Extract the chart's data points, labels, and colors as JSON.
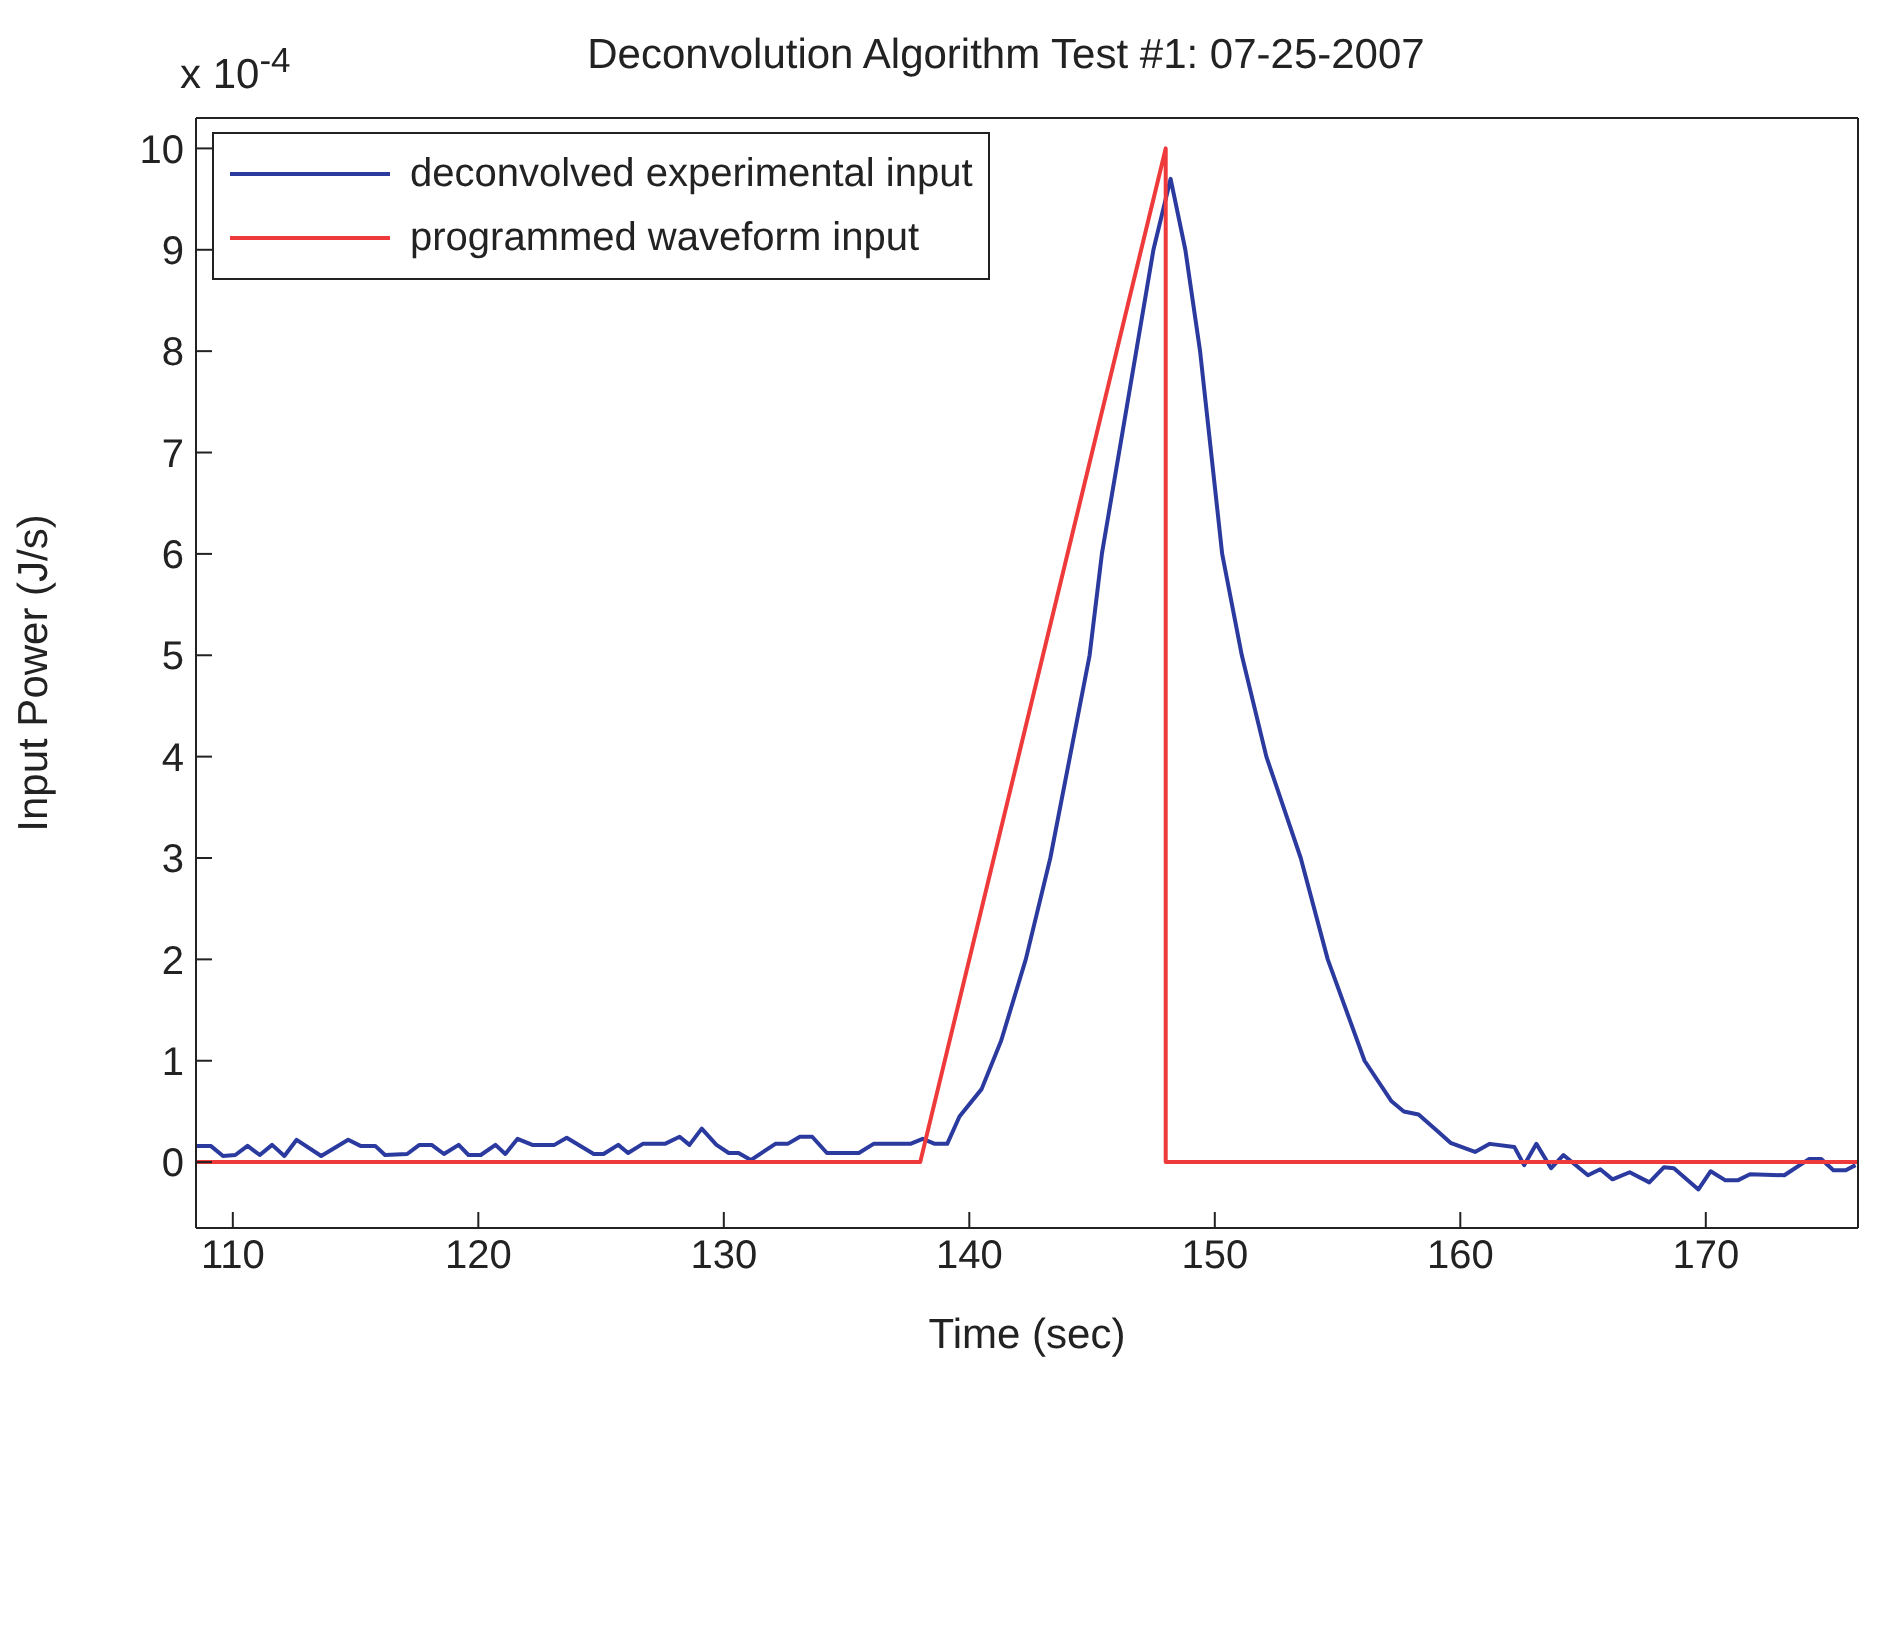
{
  "chart_data": {
    "type": "line",
    "title": "Deconvolution Algorithm Test #1: 07-25-2007",
    "xlabel": "Time (sec)",
    "ylabel": "Input Power (J/s)",
    "annotations": [
      "x 10$^{-4}$"
    ],
    "xlim": [
      108.5,
      176.2
    ],
    "xticks": [
      110,
      120,
      130,
      140,
      150,
      160,
      170
    ],
    "ylim": [
      -0.65,
      10.3
    ],
    "yticks": [
      0,
      1,
      2,
      3,
      4,
      5,
      6,
      7,
      8,
      9,
      10
    ],
    "legend": "top left",
    "marker": "none",
    "line_style": "solid",
    "series": [
      {
        "name": "deconvolved experimental input",
        "color": "#2b3a9e",
        "x": [
          108.5,
          109.1,
          109.6,
          110.1,
          110.6,
          111.1,
          111.6,
          112.1,
          112.6,
          113.6,
          114.7,
          115.2,
          115.8,
          116.2,
          117.1,
          117.6,
          118.1,
          118.6,
          119.2,
          119.6,
          120.1,
          120.7,
          121.1,
          121.6,
          122.2,
          123.1,
          123.6,
          124.7,
          125.1,
          125.7,
          126.1,
          126.7,
          127.6,
          128.2,
          128.6,
          129.1,
          129.7,
          130.2,
          130.6,
          131.1,
          132.1,
          132.6,
          133.1,
          133.6,
          134.2,
          135.5,
          136.1,
          137.6,
          138.1,
          138.6,
          139.1,
          139.6,
          140.5,
          141.3,
          142.3,
          143.3,
          144.1,
          144.9,
          145.4,
          146.8,
          147.5,
          148.2,
          148.8,
          149.4,
          150.3,
          151.1,
          152.1,
          153.5,
          154.6,
          156.1,
          157.2,
          157.7,
          158.3,
          159.1,
          159.6,
          160.6,
          161.2,
          162.2,
          162.6,
          163.1,
          163.7,
          164.2,
          165.2,
          165.7,
          166.2,
          166.9,
          167.7,
          168.3,
          168.7,
          169.7,
          170.2,
          170.8,
          171.3,
          171.8,
          173.2,
          174.2,
          174.7,
          175.2,
          175.7,
          176.1
        ],
        "values": [
          0.16,
          0.16,
          0.06,
          0.07,
          0.16,
          0.07,
          0.17,
          0.06,
          0.22,
          0.06,
          0.22,
          0.16,
          0.16,
          0.07,
          0.08,
          0.17,
          0.17,
          0.08,
          0.17,
          0.07,
          0.07,
          0.17,
          0.08,
          0.23,
          0.17,
          0.17,
          0.24,
          0.08,
          0.08,
          0.17,
          0.09,
          0.18,
          0.18,
          0.25,
          0.17,
          0.33,
          0.17,
          0.09,
          0.09,
          0.02,
          0.18,
          0.18,
          0.25,
          0.25,
          0.09,
          0.09,
          0.18,
          0.18,
          0.23,
          0.18,
          0.18,
          0.45,
          0.72,
          1.2,
          2,
          3,
          4,
          5,
          6,
          8,
          9,
          9.7,
          9,
          8,
          6,
          5,
          4,
          3,
          2,
          1,
          0.6,
          0.5,
          0.47,
          0.3,
          0.19,
          0.1,
          0.18,
          0.15,
          -0.03,
          0.18,
          -0.06,
          0.07,
          -0.13,
          -0.07,
          -0.17,
          -0.1,
          -0.2,
          -0.05,
          -0.06,
          -0.27,
          -0.09,
          -0.18,
          -0.18,
          -0.12,
          -0.13,
          0.03,
          0.03,
          -0.08,
          -0.08,
          -0.03
        ]
      },
      {
        "name": "programmed waveform input",
        "color": "#ee3a3a",
        "x": [
          108.5,
          138,
          148,
          148,
          176.2
        ],
        "values": [
          0,
          0,
          10,
          0,
          0
        ]
      }
    ]
  }
}
